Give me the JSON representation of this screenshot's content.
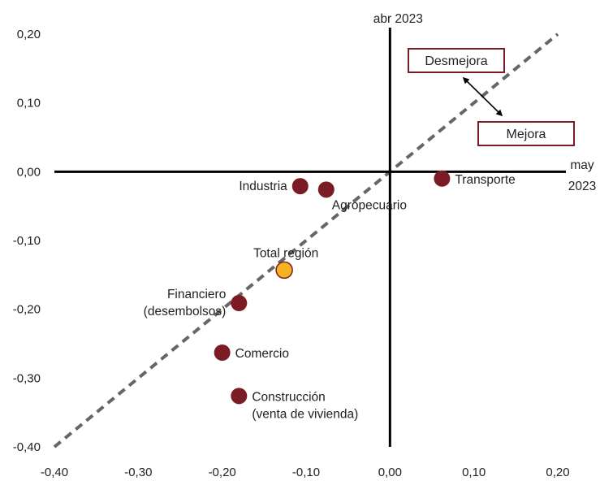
{
  "chart_data": {
    "type": "scatter",
    "x_axis_title": "may 2023",
    "y_axis_title": "abr 2023",
    "xlim": [
      -0.4,
      0.2
    ],
    "ylim": [
      -0.4,
      0.2
    ],
    "x_ticks": [
      "-0,40",
      "-0,30",
      "-0,20",
      "-0,10",
      "0,00",
      "0,10",
      "0,20"
    ],
    "y_ticks": [
      "-0,40",
      "-0,30",
      "-0,20",
      "-0,10",
      "0,00",
      "0,10",
      "0,20"
    ],
    "x_tick_values": [
      -0.4,
      -0.3,
      -0.2,
      -0.1,
      0.0,
      0.1,
      0.2
    ],
    "y_tick_values": [
      -0.4,
      -0.3,
      -0.2,
      -0.1,
      0.0,
      0.1,
      0.2
    ],
    "reference_line": {
      "style": "dashed",
      "from": [
        -0.4,
        -0.4
      ],
      "to": [
        0.2,
        0.2
      ]
    },
    "points": [
      {
        "label": "Industria",
        "x": -0.107,
        "y": -0.021,
        "color": "#7b1c24",
        "label_pos": "left"
      },
      {
        "label": "Agropecuario",
        "x": -0.076,
        "y": -0.026,
        "color": "#7b1c24",
        "label_pos": "below-right"
      },
      {
        "label": "Transporte",
        "x": 0.062,
        "y": -0.01,
        "color": "#7b1c24",
        "label_pos": "right"
      },
      {
        "label": "Total región",
        "x": -0.126,
        "y": -0.143,
        "color": "#f5b324",
        "label_pos": "above"
      },
      {
        "label": "Financiero (desembolsos)",
        "label_lines": [
          "Financiero",
          "(desembolsos)"
        ],
        "x": -0.18,
        "y": -0.191,
        "color": "#7b1c24",
        "label_pos": "left"
      },
      {
        "label": "Comercio",
        "x": -0.2,
        "y": -0.263,
        "color": "#7b1c24",
        "label_pos": "right"
      },
      {
        "label": "Construcción (venta de vivienda)",
        "label_lines": [
          "Construcción",
          "(venta de vivienda)"
        ],
        "x": -0.18,
        "y": -0.326,
        "color": "#7b1c24",
        "label_pos": "right"
      }
    ],
    "annotations": [
      {
        "text": "Desmejora",
        "box_color": "#7b1c24"
      },
      {
        "text": "Mejora",
        "box_color": "#7b1c24"
      }
    ],
    "colors": {
      "sector": "#7b1c24",
      "total": "#f5b324",
      "axis": "#000000",
      "dashed": "#666666"
    },
    "grid": false
  }
}
